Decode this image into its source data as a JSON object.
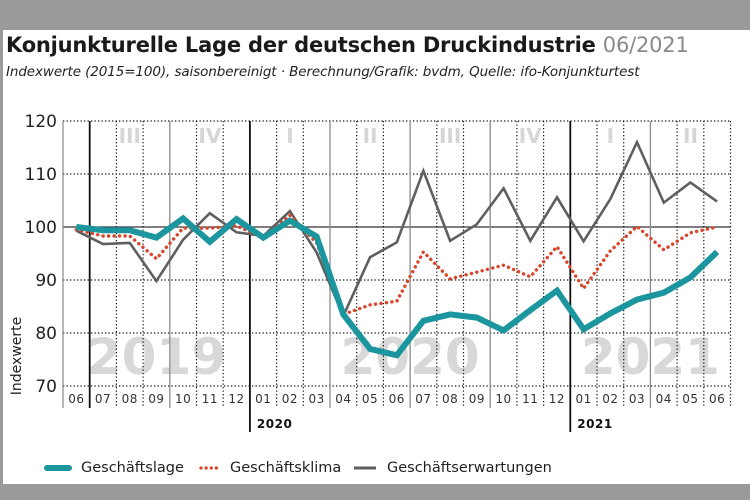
{
  "header": {
    "title": "Konjunkturelle Lage der deutschen Druckindustrie",
    "title_date": "06/2021",
    "subtitle": "Indexwerte (2015=100), saisonbereinigt · Berechnung/Grafik: bvdm, Quelle: ifo-Konjunkturtest"
  },
  "chart_data": {
    "type": "line",
    "title": "Konjunkturelle Lage der deutschen Druckindustrie 06/2021",
    "subtitle": "Indexwerte (2015=100), saisonbereinigt · Berechnung/Grafik: bvdm, Quelle: ifo-Konjunkturtest",
    "xlabel": "",
    "ylabel": "Indexwerte",
    "ylim": [
      70,
      120
    ],
    "yticks": [
      70,
      80,
      90,
      100,
      110,
      120
    ],
    "reference_line": 100,
    "grid": true,
    "x": [
      "06",
      "07",
      "08",
      "09",
      "10",
      "11",
      "12",
      "01",
      "02",
      "03",
      "04",
      "05",
      "06",
      "07",
      "08",
      "09",
      "10",
      "11",
      "12",
      "01",
      "02",
      "03",
      "04",
      "05",
      "06"
    ],
    "year_labels": [
      {
        "label": "2020",
        "starts_at_index": 7
      },
      {
        "label": "2021",
        "starts_at_index": 19
      }
    ],
    "background_years": [
      {
        "label": "2019",
        "from_index": 0,
        "to_index": 6
      },
      {
        "label": "2020",
        "from_index": 7,
        "to_index": 18
      },
      {
        "label": "2021",
        "from_index": 19,
        "to_index": 24
      }
    ],
    "quarters": [
      {
        "label": "III",
        "from_index": 1,
        "to_index": 3
      },
      {
        "label": "IV",
        "from_index": 4,
        "to_index": 6
      },
      {
        "label": "I",
        "from_index": 7,
        "to_index": 9
      },
      {
        "label": "II",
        "from_index": 10,
        "to_index": 12
      },
      {
        "label": "III",
        "from_index": 13,
        "to_index": 15
      },
      {
        "label": "IV",
        "from_index": 16,
        "to_index": 18
      },
      {
        "label": "I",
        "from_index": 19,
        "to_index": 21
      },
      {
        "label": "II",
        "from_index": 22,
        "to_index": 24
      }
    ],
    "series": [
      {
        "name": "Geschäftslage",
        "color": "#1b959e",
        "style": "solid-thick",
        "values": [
          100,
          99.4,
          99.4,
          98,
          101.6,
          97.2,
          101.5,
          98,
          101.2,
          98.2,
          83.5,
          77,
          75.8,
          82.3,
          83.5,
          82.9,
          80.5,
          84.3,
          88,
          80.7,
          83.7,
          86.3,
          87.6,
          90.5,
          95.3
        ]
      },
      {
        "name": "Geschäftsklima",
        "color": "#d9452a",
        "style": "dotted",
        "values": [
          99.5,
          98.3,
          98.3,
          94,
          99.8,
          99.8,
          100.2,
          98,
          102.2,
          97,
          83.5,
          85.3,
          86,
          95.3,
          90.2,
          91.5,
          92.8,
          90.6,
          96.3,
          88.4,
          95.5,
          100.1,
          95.7,
          98.9,
          100
        ]
      },
      {
        "name": "Geschäftserwartungen",
        "color": "#5f5f5f",
        "style": "solid-thin",
        "values": [
          99.3,
          96.8,
          97,
          89.8,
          97.6,
          102.6,
          99,
          98.3,
          103,
          95.2,
          83.2,
          94.3,
          97.1,
          110.6,
          97.4,
          100.5,
          107.3,
          97.4,
          105.6,
          97.3,
          105.3,
          116,
          104.6,
          108.4,
          104.8
        ]
      }
    ],
    "legend": {
      "placement": "bottom",
      "entries": [
        "Geschäftslage",
        "Geschäftsklima",
        "Geschäftserwartungen"
      ]
    }
  }
}
